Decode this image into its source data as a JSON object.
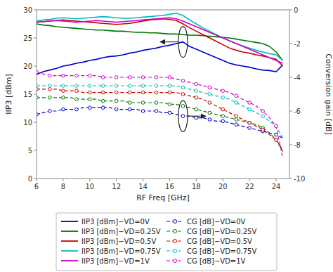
{
  "chart_data": {
    "type": "line",
    "xlabel": "RF Freq [GHz]",
    "ylabel": "IIP3 [dBm]",
    "y2label": "Conversion gain [dB]",
    "x": [
      6,
      6.5,
      7,
      7.5,
      8,
      8.5,
      9,
      9.5,
      10,
      10.5,
      11,
      11.5,
      12,
      12.5,
      13,
      13.5,
      14,
      14.5,
      15,
      15.5,
      16,
      16.5,
      17,
      17.5,
      18,
      18.5,
      19,
      19.5,
      20,
      20.5,
      21,
      21.5,
      22,
      22.5,
      23,
      23.5,
      24,
      24.5
    ],
    "xlim": [
      6,
      25
    ],
    "xticks": [
      6,
      8,
      10,
      12,
      14,
      16,
      18,
      20,
      22,
      24
    ],
    "ylim": [
      0,
      30
    ],
    "yticks": [
      0,
      5,
      10,
      15,
      20,
      25,
      30
    ],
    "y2lim": [
      -10,
      0
    ],
    "y2ticks": [
      -10,
      -8,
      -6,
      -4,
      -2,
      0
    ],
    "grid": false,
    "legend": "bottom",
    "series": [
      {
        "name": "IIP3 [dBm]−VD=0V",
        "color": "#0000cc",
        "line_style": "solid",
        "values": [
          18.5,
          19.0,
          19.3,
          19.6,
          20.0,
          20.2,
          20.5,
          20.7,
          21.0,
          21.2,
          21.5,
          21.7,
          21.8,
          22.0,
          22.3,
          22.5,
          22.8,
          23.0,
          23.2,
          23.5,
          23.7,
          24.0,
          24.3,
          23.5,
          23.0,
          22.5,
          22.0,
          21.5,
          21.0,
          20.5,
          20.2,
          20.0,
          19.8,
          19.5,
          19.3,
          19.2,
          19.0,
          20.2
        ]
      },
      {
        "name": "CG [dB]−VD=0V",
        "color": "#0000cc",
        "axis": "y2",
        "line_style": "dashed",
        "marker": "circle",
        "values": [
          -6.2,
          -6.1,
          -6.0,
          -6.0,
          -5.9,
          -5.9,
          -5.9,
          -5.8,
          -5.8,
          -5.8,
          -5.8,
          -5.8,
          -5.9,
          -5.9,
          -5.9,
          -5.9,
          -6.0,
          -6.0,
          -6.0,
          -6.1,
          -6.1,
          -6.2,
          -6.3,
          -6.3,
          -6.4,
          -6.4,
          -6.5,
          -6.6,
          -6.6,
          -6.7,
          -6.8,
          -6.9,
          -7.0,
          -7.1,
          -7.2,
          -7.3,
          -7.4,
          -7.6
        ]
      },
      {
        "name": "IIP3 [dBm]−VD=0.25V",
        "color": "#007700",
        "line_style": "solid",
        "values": [
          27.5,
          27.3,
          27.2,
          27.0,
          26.9,
          26.8,
          26.7,
          26.6,
          26.5,
          26.4,
          26.4,
          26.3,
          26.2,
          26.2,
          26.1,
          26.0,
          26.0,
          25.9,
          25.9,
          25.8,
          25.7,
          25.7,
          25.6,
          25.5,
          25.5,
          25.4,
          25.3,
          25.2,
          25.1,
          25.0,
          24.8,
          24.6,
          24.4,
          24.2,
          24.0,
          23.5,
          22.5,
          21.0
        ]
      },
      {
        "name": "CG [dB]−VD=0.25V",
        "color": "#007700",
        "axis": "y2",
        "line_style": "dashed",
        "marker": "circle",
        "values": [
          -5.2,
          -5.2,
          -5.2,
          -5.2,
          -5.2,
          -5.2,
          -5.3,
          -5.3,
          -5.3,
          -5.3,
          -5.4,
          -5.4,
          -5.4,
          -5.4,
          -5.5,
          -5.5,
          -5.5,
          -5.5,
          -5.5,
          -5.5,
          -5.6,
          -5.6,
          -5.7,
          -5.8,
          -5.9,
          -6.0,
          -6.1,
          -6.2,
          -6.3,
          -6.4,
          -6.5,
          -6.6,
          -6.7,
          -6.8,
          -7.0,
          -7.3,
          -7.7,
          -8.4
        ]
      },
      {
        "name": "IIP3 [dBm]−VD=0.5V",
        "color": "#cc0000",
        "line_style": "solid",
        "values": [
          27.8,
          27.9,
          28.0,
          28.1,
          28.2,
          28.1,
          28.0,
          27.9,
          27.8,
          27.7,
          27.6,
          27.5,
          27.4,
          27.5,
          27.6,
          27.8,
          28.0,
          28.2,
          28.3,
          28.4,
          28.3,
          28.1,
          27.5,
          26.8,
          26.2,
          25.6,
          25.0,
          24.4,
          23.8,
          23.2,
          22.8,
          22.5,
          22.3,
          22.0,
          21.8,
          21.5,
          21.2,
          20.0
        ]
      },
      {
        "name": "CG [dB]−VD=0.5V",
        "color": "#cc0000",
        "axis": "y2",
        "line_style": "dashed",
        "marker": "circle",
        "values": [
          -4.7,
          -4.7,
          -4.7,
          -4.7,
          -4.8,
          -4.8,
          -4.8,
          -4.9,
          -4.9,
          -4.9,
          -4.9,
          -4.9,
          -4.9,
          -4.9,
          -4.9,
          -4.9,
          -4.9,
          -4.9,
          -4.9,
          -4.9,
          -4.9,
          -4.9,
          -5.0,
          -5.1,
          -5.2,
          -5.3,
          -5.5,
          -5.7,
          -5.9,
          -6.1,
          -6.3,
          -6.5,
          -6.7,
          -6.9,
          -7.1,
          -7.4,
          -7.7,
          -8.3
        ]
      },
      {
        "name": "IIP3 [dBm]−VD=0.75V",
        "color": "#00bbbb",
        "line_style": "solid",
        "values": [
          28.0,
          28.2,
          28.3,
          28.5,
          28.6,
          28.5,
          28.4,
          28.5,
          28.6,
          28.7,
          28.8,
          28.7,
          28.6,
          28.5,
          28.5,
          28.6,
          28.7,
          28.8,
          28.9,
          29.0,
          29.2,
          29.4,
          29.0,
          28.2,
          27.5,
          26.8,
          26.2,
          25.6,
          25.0,
          24.5,
          24.0,
          23.6,
          23.2,
          22.8,
          22.5,
          22.2,
          22.0,
          21.0
        ]
      },
      {
        "name": "CG [dB]−VD=0.75V",
        "color": "#00bbbb",
        "axis": "y2",
        "line_style": "dashed",
        "marker": "circle",
        "values": [
          -4.5,
          -4.5,
          -4.5,
          -4.5,
          -4.5,
          -4.5,
          -4.5,
          -4.5,
          -4.5,
          -4.5,
          -4.5,
          -4.5,
          -4.5,
          -4.5,
          -4.5,
          -4.5,
          -4.5,
          -4.5,
          -4.5,
          -4.5,
          -4.5,
          -4.5,
          -4.6,
          -4.7,
          -4.8,
          -4.9,
          -5.0,
          -5.1,
          -5.2,
          -5.3,
          -5.5,
          -5.7,
          -5.9,
          -6.1,
          -6.3,
          -6.6,
          -6.9,
          -7.6
        ]
      },
      {
        "name": "IIP3 [dBm]−VD=1V",
        "color": "#cc00cc",
        "line_style": "solid",
        "values": [
          27.8,
          27.9,
          28.0,
          28.1,
          28.0,
          27.9,
          27.8,
          27.9,
          28.0,
          28.1,
          28.0,
          27.9,
          27.8,
          27.9,
          28.0,
          28.1,
          28.2,
          28.3,
          28.4,
          28.5,
          28.6,
          28.4,
          28.0,
          27.5,
          27.0,
          26.5,
          26.0,
          25.5,
          25.0,
          24.5,
          24.0,
          23.5,
          23.0,
          22.5,
          22.0,
          21.5,
          21.0,
          20.5
        ]
      },
      {
        "name": "CG [dB]−VD=1V",
        "color": "#cc00cc",
        "axis": "y2",
        "line_style": "dashed",
        "marker": "circle",
        "values": [
          -3.7,
          -3.8,
          -3.9,
          -3.9,
          -3.9,
          -3.9,
          -3.9,
          -3.9,
          -3.9,
          -3.9,
          -4.0,
          -4.0,
          -4.0,
          -4.0,
          -4.0,
          -4.0,
          -4.0,
          -4.0,
          -4.0,
          -4.0,
          -4.0,
          -4.1,
          -4.2,
          -4.3,
          -4.4,
          -4.5,
          -4.6,
          -4.7,
          -4.8,
          -4.9,
          -5.1,
          -5.3,
          -5.5,
          -5.7,
          -6.0,
          -6.4,
          -6.9,
          -8.8
        ]
      }
    ],
    "annotations": [
      {
        "x": 17.0,
        "y": 24.3,
        "arrow_x": 15.3
      },
      {
        "x": 17.0,
        "y": -6.3,
        "axis": "y2",
        "arrow_x": 18.7
      }
    ]
  }
}
